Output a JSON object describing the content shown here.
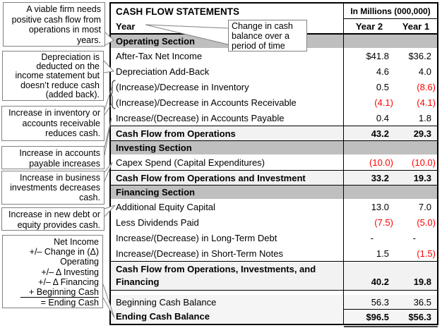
{
  "table": {
    "title": "CASH FLOW STATEMENTS",
    "units_header": "In Millions (000,000)",
    "year_label": "Year",
    "col_headers": [
      "Year 2",
      "Year 1"
    ],
    "rows": [
      {
        "label": "Operating Section",
        "type": "section"
      },
      {
        "label": "After-Tax Net Income",
        "y2": "$41.8",
        "y1": "$36.2",
        "type": "item"
      },
      {
        "label": "Depreciation Add-Back",
        "y2": "4.6",
        "y1": "4.0",
        "type": "item"
      },
      {
        "label": "(Increase)/Decrease in Inventory",
        "y2": "0.5",
        "y1": "(8.6)",
        "type": "item"
      },
      {
        "label": "(Increase)/Decrease in Accounts Receivable",
        "y2": "(4.1)",
        "y1": "(4.1)",
        "type": "item"
      },
      {
        "label": "Increase/(Decrease) in Accounts Payable",
        "y2": "0.4",
        "y1": "1.8",
        "type": "item"
      },
      {
        "label": "Cash Flow from Operations",
        "y2": "43.2",
        "y1": "29.3",
        "type": "subtotal"
      },
      {
        "label": "Investing Section",
        "type": "section"
      },
      {
        "label": "Capex Spend (Capital Expenditures)",
        "y2": "(10.0)",
        "y1": "(10.0)",
        "type": "item"
      },
      {
        "label": "Cash Flow from Operations and Investment",
        "y2": "33.2",
        "y1": "19.3",
        "type": "subtotal"
      },
      {
        "label": "Financing Section",
        "type": "section"
      },
      {
        "label": "Additional Equity Capital",
        "y2": "13.0",
        "y1": "7.0",
        "type": "item"
      },
      {
        "label": "Less Dividends Paid",
        "y2": "(7.5)",
        "y1": "(5.0)",
        "type": "item"
      },
      {
        "label": "Increase/(Decrease) in Long-Term Debt",
        "y2": "-",
        "y1": "-",
        "type": "item"
      },
      {
        "label": "Increase/(Decrease) in Short-Term Notes",
        "y2": "1.5",
        "y1": "(1.5)",
        "type": "item"
      },
      {
        "label": "Cash Flow from Operations, Investments, and Financing",
        "y2": "40.2",
        "y1": "19.8",
        "type": "subtotal2"
      },
      {
        "label": "",
        "type": "spacer"
      },
      {
        "label": "Beginning Cash Balance",
        "y2": "56.3",
        "y1": "36.5",
        "type": "item",
        "shade": true,
        "beg": true
      },
      {
        "label": "Ending Cash Balance",
        "y2": "$96.5",
        "y1": "$56.3",
        "type": "total"
      }
    ]
  },
  "callouts": [
    {
      "name": "viable-firm",
      "lines": [
        "A viable firm needs",
        "positive cash flow  from",
        "operations in most",
        "years."
      ]
    },
    {
      "name": "depreciation",
      "lines": [
        "Depreciation is",
        "deducted on the",
        "income statement but",
        "doesn’t reduce cash",
        "(added back)."
      ]
    },
    {
      "name": "inventory-receivable",
      "lines": [
        "Increase in inventory or",
        "accounts receivable",
        "reduces cash."
      ]
    },
    {
      "name": "accounts-payable",
      "lines": [
        "Increase in accounts",
        "payable increases cash."
      ]
    },
    {
      "name": "investments",
      "lines": [
        "Increase in business",
        "investments decreases",
        "cash."
      ]
    },
    {
      "name": "debt-equity",
      "lines": [
        "Increase in new debt or",
        "equity provides cash."
      ]
    },
    {
      "name": "cash-formula",
      "lines": [
        "Net Income",
        "+/– Change in (Δ)",
        "Operating",
        "+/– Δ Investing",
        "+/– Δ Financing",
        "+ Beginning Cash",
        "= Ending Cash"
      ],
      "underline_line": 5
    },
    {
      "name": "change-in-cash",
      "lines": [
        "Change in cash",
        "balance over a",
        "period of time"
      ]
    }
  ],
  "colors": {
    "negative": "#FF0000",
    "section_band": "#BFBFBF",
    "subtotal_band": "#F2F2F2",
    "table_border": "#000000",
    "callout_border": "#808080"
  }
}
